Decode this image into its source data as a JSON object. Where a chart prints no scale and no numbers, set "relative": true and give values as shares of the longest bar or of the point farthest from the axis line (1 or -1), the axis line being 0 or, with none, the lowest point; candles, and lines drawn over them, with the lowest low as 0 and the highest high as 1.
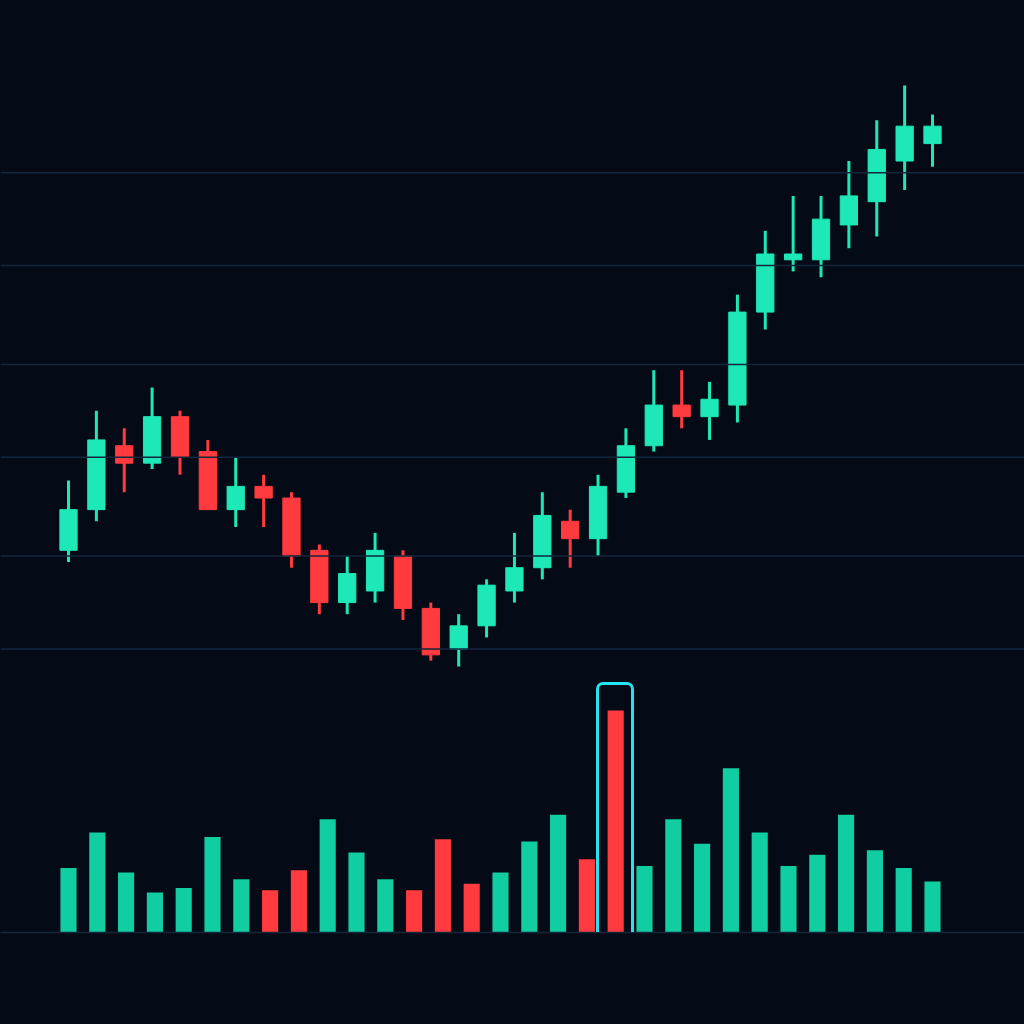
{
  "chart_data": [
    {
      "type": "candlestick",
      "relative": true,
      "categories": [
        null,
        null,
        null,
        null,
        null,
        null,
        null,
        null,
        null,
        null,
        null,
        null,
        null,
        null,
        null,
        null,
        null,
        null,
        null,
        null,
        null,
        null,
        null,
        null,
        null,
        null,
        null,
        null,
        null,
        null,
        null,
        null
      ],
      "ohlc": [
        [
          0.2,
          0.32,
          0.18,
          0.27
        ],
        [
          0.27,
          0.44,
          0.25,
          0.39
        ],
        [
          0.38,
          0.41,
          0.3,
          0.35
        ],
        [
          0.35,
          0.48,
          0.34,
          0.43
        ],
        [
          0.43,
          0.44,
          0.33,
          0.36
        ],
        [
          0.37,
          0.39,
          0.27,
          0.27
        ],
        [
          0.27,
          0.36,
          0.24,
          0.31
        ],
        [
          0.31,
          0.33,
          0.24,
          0.29
        ],
        [
          0.29,
          0.3,
          0.17,
          0.19
        ],
        [
          0.2,
          0.21,
          0.09,
          0.11
        ],
        [
          0.11,
          0.19,
          0.09,
          0.16
        ],
        [
          0.13,
          0.23,
          0.11,
          0.2
        ],
        [
          0.19,
          0.2,
          0.08,
          0.1
        ],
        [
          0.1,
          0.11,
          0.01,
          0.02
        ],
        [
          0.03,
          0.09,
          0.0,
          0.07
        ],
        [
          0.07,
          0.15,
          0.05,
          0.14
        ],
        [
          0.13,
          0.23,
          0.11,
          0.17
        ],
        [
          0.17,
          0.3,
          0.15,
          0.26
        ],
        [
          0.25,
          0.27,
          0.17,
          0.22
        ],
        [
          0.22,
          0.33,
          0.19,
          0.31
        ],
        [
          0.3,
          0.41,
          0.29,
          0.38
        ],
        [
          0.38,
          0.51,
          0.37,
          0.45
        ],
        [
          0.45,
          0.51,
          0.41,
          0.43
        ],
        [
          0.43,
          0.49,
          0.39,
          0.46
        ],
        [
          0.45,
          0.64,
          0.42,
          0.61
        ],
        [
          0.61,
          0.75,
          0.58,
          0.71
        ],
        [
          0.7,
          0.81,
          0.68,
          0.71
        ],
        [
          0.7,
          0.81,
          0.67,
          0.77
        ],
        [
          0.76,
          0.87,
          0.72,
          0.81
        ],
        [
          0.8,
          0.94,
          0.74,
          0.89
        ],
        [
          0.87,
          1.0,
          0.82,
          0.93
        ],
        [
          0.9,
          0.95,
          0.86,
          0.93
        ]
      ],
      "colors": [
        "#1ee8b7",
        "#1ee8b7",
        "#ff3b3f",
        "#1ee8b7",
        "#ff3b3f",
        "#ff3b3f",
        "#1ee8b7",
        "#ff3b3f",
        "#ff3b3f",
        "#ff3b3f",
        "#1ee8b7",
        "#1ee8b7",
        "#ff3b3f",
        "#ff3b3f",
        "#1ee8b7",
        "#1ee8b7",
        "#1ee8b7",
        "#1ee8b7",
        "#ff3b3f",
        "#1ee8b7",
        "#1ee8b7",
        "#1ee8b7",
        "#ff3b3f",
        "#1ee8b7",
        "#1ee8b7",
        "#1ee8b7",
        "#1ee8b7",
        "#1ee8b7",
        "#1ee8b7",
        "#1ee8b7",
        "#1ee8b7",
        "#1ee8b7"
      ],
      "ref_lines": [
        {
          "axis": "y",
          "value": 0.03,
          "color": "#13263c"
        },
        {
          "axis": "y",
          "value": 0.19,
          "color": "#13263c"
        },
        {
          "axis": "y",
          "value": 0.36,
          "color": "#13263c"
        },
        {
          "axis": "y",
          "value": 0.52,
          "color": "#13263c"
        },
        {
          "axis": "y",
          "value": 0.69,
          "color": "#13263c"
        },
        {
          "axis": "y",
          "value": 0.85,
          "color": "#13263c"
        }
      ]
    },
    {
      "type": "bar",
      "relative": true,
      "categories": [
        null,
        null,
        null,
        null,
        null,
        null,
        null,
        null,
        null,
        null,
        null,
        null,
        null,
        null,
        null,
        null,
        null,
        null,
        null,
        null,
        null,
        null,
        null,
        null,
        null,
        null,
        null,
        null,
        null,
        null,
        null
      ],
      "values": [
        0.29,
        0.45,
        0.27,
        0.18,
        0.2,
        0.43,
        0.24,
        0.19,
        0.28,
        0.51,
        0.36,
        0.24,
        0.19,
        0.42,
        0.22,
        0.27,
        0.41,
        0.53,
        0.33,
        1.0,
        0.3,
        0.51,
        0.4,
        0.74,
        0.45,
        0.3,
        0.35,
        0.53,
        0.37,
        0.29,
        0.23
      ],
      "colors": [
        "#10cda2",
        "#10cda2",
        "#10cda2",
        "#10cda2",
        "#10cda2",
        "#10cda2",
        "#10cda2",
        "#ff3b3f",
        "#ff3b3f",
        "#10cda2",
        "#10cda2",
        "#10cda2",
        "#ff3b3f",
        "#ff3b3f",
        "#ff3b3f",
        "#10cda2",
        "#10cda2",
        "#10cda2",
        "#ff3b3f",
        "#ff3b3f",
        "#10cda2",
        "#10cda2",
        "#10cda2",
        "#10cda2",
        "#10cda2",
        "#10cda2",
        "#10cda2",
        "#10cda2",
        "#10cda2",
        "#10cda2",
        "#10cda2"
      ]
    }
  ]
}
